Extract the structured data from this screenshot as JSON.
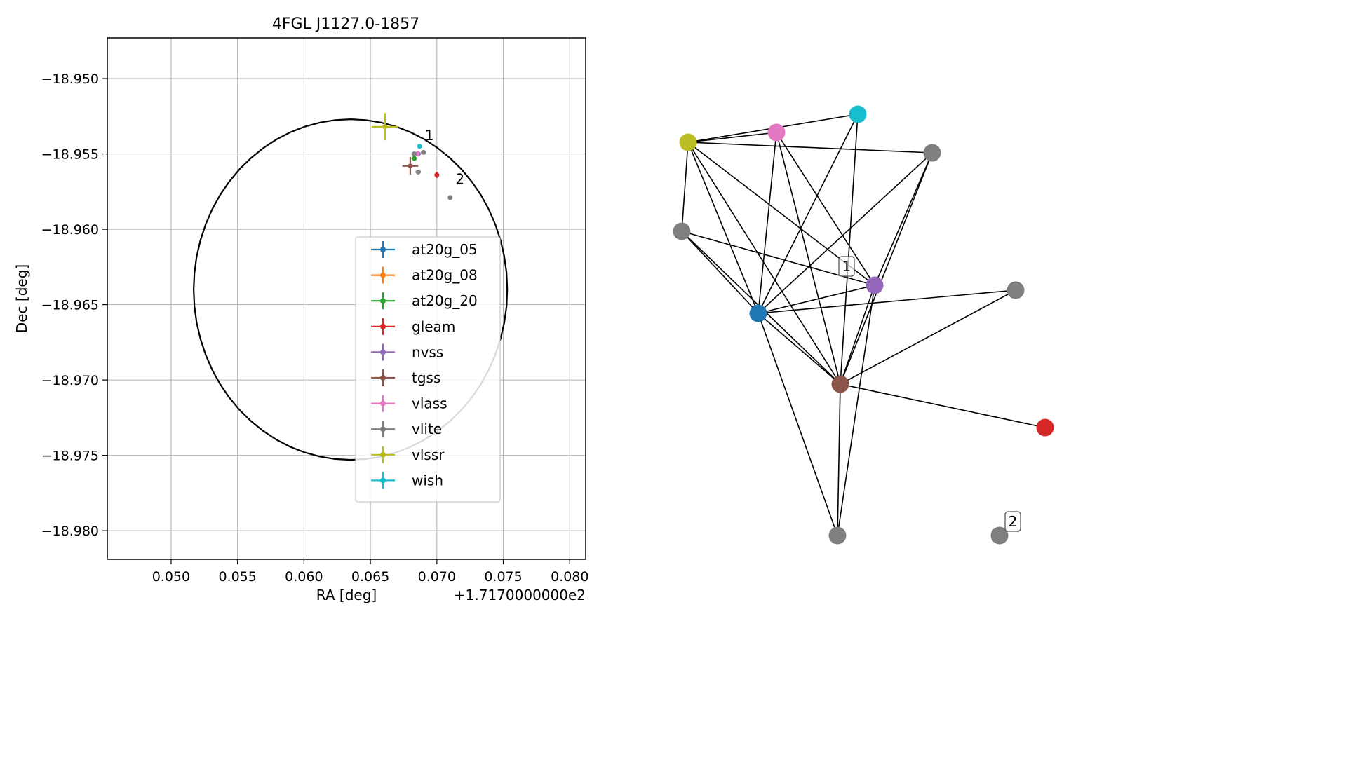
{
  "chart_data": [
    {
      "type": "scatter",
      "title": "4FGL J1127.0-1857",
      "xlabel": "RA [deg]",
      "ylabel": "Dec [deg]",
      "x_offset_label": "+1.7170000000e2",
      "xlim": [
        0.0452,
        0.0812
      ],
      "ylim": [
        -18.9819,
        -18.9473
      ],
      "x_ticks": [
        0.05,
        0.055,
        0.06,
        0.065,
        0.07,
        0.075,
        0.08
      ],
      "x_tick_labels": [
        "0.050",
        "0.055",
        "0.060",
        "0.065",
        "0.070",
        "0.075",
        "0.080"
      ],
      "y_ticks": [
        -18.95,
        -18.955,
        -18.96,
        -18.965,
        -18.97,
        -18.975,
        -18.98
      ],
      "y_tick_labels": [
        "−18.950",
        "−18.955",
        "−18.960",
        "−18.965",
        "−18.970",
        "−18.975",
        "−18.980"
      ],
      "grid": true,
      "legend_placement": "center",
      "circle": {
        "center_x": 0.0635,
        "center_y": -18.964,
        "radius_x": 0.0118,
        "radius_y": 0.0113
      },
      "series": [
        {
          "name": "at20g_05",
          "color": "#1f77b4",
          "points": []
        },
        {
          "name": "at20g_08",
          "color": "#ff7f0e",
          "points": []
        },
        {
          "name": "at20g_20",
          "color": "#2ca02c",
          "points": [
            {
              "x": 0.0683,
              "y": -18.9553,
              "xerr": 0.0002,
              "yerr": 0.0001
            }
          ]
        },
        {
          "name": "gleam",
          "color": "#d62728",
          "points": [
            {
              "x": 0.07,
              "y": -18.9564,
              "xerr": 0.0001,
              "yerr": 0.0002
            }
          ]
        },
        {
          "name": "nvss",
          "color": "#9467bd",
          "points": [
            {
              "x": 0.0686,
              "y": -18.955,
              "xerr": 0.0002,
              "yerr": 0.0001
            }
          ]
        },
        {
          "name": "tgss",
          "color": "#8c564b",
          "points": [
            {
              "x": 0.068,
              "y": -18.9558,
              "xerr": 0.0006,
              "yerr": 0.0006
            }
          ]
        },
        {
          "name": "vlass",
          "color": "#e377c2",
          "points": [
            {
              "x": 0.0685,
              "y": -18.955,
              "xerr": 0.0001,
              "yerr": 0.0001
            }
          ]
        },
        {
          "name": "vlite",
          "color": "#7f7f7f",
          "points": [
            {
              "x": 0.0683,
              "y": -18.955,
              "xerr": 0.0001,
              "yerr": 0.0001
            },
            {
              "x": 0.0686,
              "y": -18.9562,
              "xerr": 0.0002,
              "yerr": 0.0001
            },
            {
              "x": 0.069,
              "y": -18.9549,
              "xerr": 0.0002,
              "yerr": 0.0001
            },
            {
              "x": 0.071,
              "y": -18.9579,
              "xerr": 0.0001,
              "yerr": 0.0001
            }
          ]
        },
        {
          "name": "vlssr",
          "color": "#bcbd22",
          "points": [
            {
              "x": 0.0661,
              "y": -18.9532,
              "xerr": 0.001,
              "yerr": 0.0009
            }
          ]
        },
        {
          "name": "wish",
          "color": "#17becf",
          "points": [
            {
              "x": 0.0687,
              "y": -18.9545,
              "xerr": 0.0001,
              "yerr": 0.0001
            }
          ]
        }
      ],
      "annotations": [
        {
          "text": "1",
          "x": 0.0691,
          "y": -18.9541
        },
        {
          "text": "2",
          "x": 0.0714,
          "y": -18.957
        }
      ]
    },
    {
      "type": "network",
      "nodes": [
        {
          "id": "vlssr",
          "color": "#bcbd22"
        },
        {
          "id": "vlass",
          "color": "#e377c2"
        },
        {
          "id": "wish",
          "color": "#17becf"
        },
        {
          "id": "vlite_a",
          "color": "#7f7f7f"
        },
        {
          "id": "vlite_b",
          "color": "#7f7f7f"
        },
        {
          "id": "nvss",
          "color": "#9467bd"
        },
        {
          "id": "vlite_c",
          "color": "#7f7f7f"
        },
        {
          "id": "at20g_20",
          "color": "#1f77b4"
        },
        {
          "id": "tgss",
          "color": "#8c564b"
        },
        {
          "id": "gleam",
          "color": "#d62728"
        },
        {
          "id": "vlite_d",
          "color": "#7f7f7f"
        },
        {
          "id": "vlite_e",
          "color": "#7f7f7f"
        }
      ],
      "edges": [
        [
          "vlssr",
          "vlass"
        ],
        [
          "vlssr",
          "wish"
        ],
        [
          "vlssr",
          "vlite_a"
        ],
        [
          "vlssr",
          "vlite_b"
        ],
        [
          "vlssr",
          "at20g_20"
        ],
        [
          "vlssr",
          "tgss"
        ],
        [
          "vlssr",
          "nvss"
        ],
        [
          "vlass",
          "at20g_20"
        ],
        [
          "vlass",
          "tgss"
        ],
        [
          "vlass",
          "nvss"
        ],
        [
          "wish",
          "at20g_20"
        ],
        [
          "wish",
          "tgss"
        ],
        [
          "vlite_a",
          "at20g_20"
        ],
        [
          "vlite_a",
          "tgss"
        ],
        [
          "vlite_a",
          "nvss"
        ],
        [
          "vlite_b",
          "at20g_20"
        ],
        [
          "vlite_b",
          "tgss"
        ],
        [
          "vlite_b",
          "nvss"
        ],
        [
          "at20g_20",
          "vlite_c"
        ],
        [
          "at20g_20",
          "tgss"
        ],
        [
          "at20g_20",
          "nvss"
        ],
        [
          "at20g_20",
          "vlite_d"
        ],
        [
          "nvss",
          "tgss"
        ],
        [
          "nvss",
          "vlite_d"
        ],
        [
          "tgss",
          "vlite_c"
        ],
        [
          "tgss",
          "gleam"
        ],
        [
          "tgss",
          "vlite_d"
        ]
      ],
      "labels": [
        {
          "text": "1",
          "near": "nvss"
        },
        {
          "text": "2",
          "near": "vlite_e"
        }
      ]
    }
  ]
}
